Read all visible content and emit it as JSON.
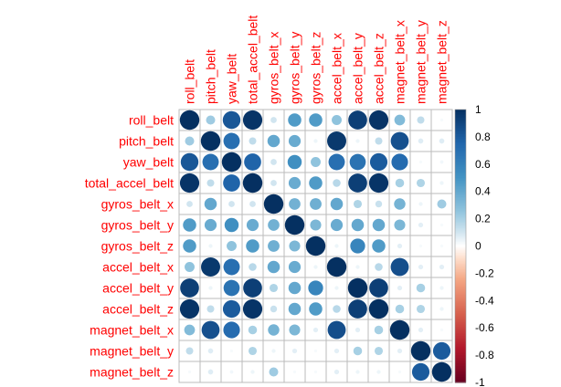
{
  "chart_data": {
    "type": "heatmap",
    "variables": [
      "roll_belt",
      "pitch_belt",
      "yaw_belt",
      "total_accel_belt",
      "gyros_belt_x",
      "gyros_belt_y",
      "gyros_belt_z",
      "accel_belt_x",
      "accel_belt_y",
      "accel_belt_z",
      "magnet_belt_x",
      "magnet_belt_y",
      "magnet_belt_z"
    ],
    "matrix": [
      [
        1.0,
        0.22,
        0.82,
        0.98,
        0.1,
        0.46,
        0.46,
        0.26,
        0.93,
        0.98,
        0.3,
        0.14,
        0.02
      ],
      [
        0.22,
        1.0,
        0.7,
        0.14,
        0.4,
        0.38,
        0.04,
        0.96,
        0.04,
        0.14,
        0.85,
        0.07,
        0.07
      ],
      [
        0.82,
        0.7,
        1.0,
        0.76,
        0.1,
        0.52,
        0.26,
        0.7,
        0.68,
        0.8,
        0.72,
        0.02,
        0.03
      ],
      [
        0.98,
        0.14,
        0.76,
        1.0,
        0.1,
        0.38,
        0.46,
        0.16,
        0.93,
        0.98,
        0.2,
        0.18,
        0.04
      ],
      [
        0.1,
        0.4,
        0.1,
        0.1,
        1.0,
        0.35,
        0.36,
        0.4,
        0.18,
        0.12,
        0.34,
        0.04,
        0.22
      ],
      [
        0.46,
        0.38,
        0.52,
        0.38,
        0.35,
        1.0,
        0.32,
        0.38,
        0.4,
        0.4,
        0.32,
        0.06,
        0.02
      ],
      [
        0.46,
        0.04,
        0.26,
        0.46,
        0.36,
        0.32,
        1.0,
        0.04,
        0.58,
        0.46,
        0.06,
        0.02,
        0.02
      ],
      [
        0.26,
        0.96,
        0.7,
        0.16,
        0.4,
        0.38,
        0.04,
        1.0,
        0.04,
        0.16,
        0.86,
        0.06,
        0.06
      ],
      [
        0.93,
        0.04,
        0.68,
        0.93,
        0.18,
        0.4,
        0.58,
        0.04,
        1.0,
        0.93,
        0.06,
        0.2,
        0.04
      ],
      [
        0.98,
        0.14,
        0.8,
        0.98,
        0.12,
        0.4,
        0.46,
        0.16,
        0.93,
        1.0,
        0.2,
        0.18,
        0.04
      ],
      [
        0.3,
        0.85,
        0.72,
        0.2,
        0.34,
        0.32,
        0.06,
        0.86,
        0.06,
        0.2,
        1.0,
        0.06,
        0.02
      ],
      [
        0.14,
        0.07,
        0.02,
        0.18,
        0.04,
        0.06,
        0.02,
        0.06,
        0.2,
        0.18,
        0.06,
        1.0,
        0.8
      ],
      [
        0.02,
        0.07,
        0.03,
        0.04,
        0.22,
        0.02,
        0.02,
        0.06,
        0.04,
        0.04,
        0.02,
        0.8,
        1.0
      ]
    ],
    "colorbar": {
      "ticks": [
        "1",
        "0.8",
        "0.6",
        "0.4",
        "0.2",
        "0",
        "-0.2",
        "-0.4",
        "-0.6",
        "-0.8",
        "-1"
      ],
      "range": [
        -1,
        1
      ]
    },
    "colors": {
      "label": "#ff0000",
      "grid": "#bbbbbb",
      "negative_end": "#67001f",
      "neutral": "#ffffff",
      "positive_end": "#053061"
    },
    "grid": true,
    "legend_position": "right"
  }
}
